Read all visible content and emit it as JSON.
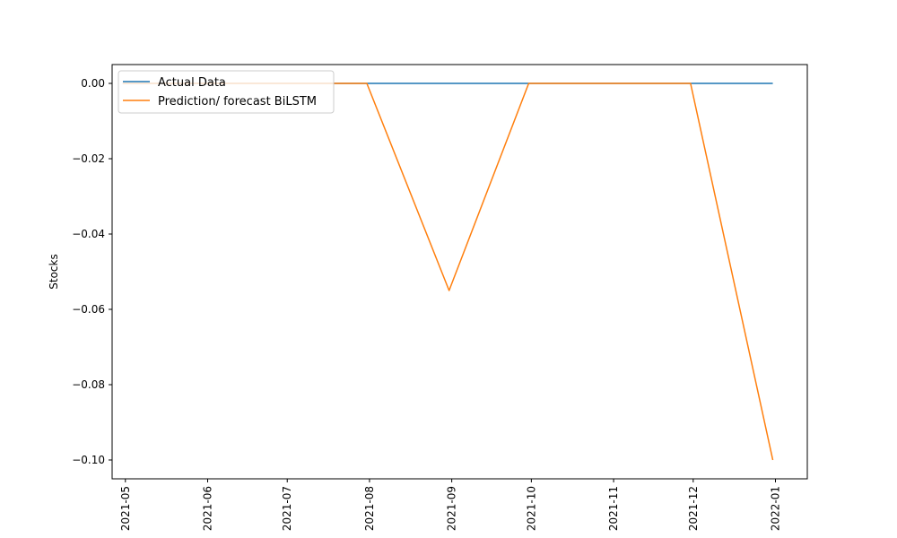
{
  "chart_data": {
    "type": "line",
    "title": "",
    "xlabel": "",
    "ylabel": "Stocks",
    "x_ticks": [
      "2021-05",
      "2021-06",
      "2021-07",
      "2021-08",
      "2021-09",
      "2021-10",
      "2021-11",
      "2021-12",
      "2022-01"
    ],
    "y_ticks": [
      "0.00",
      "−0.02",
      "−0.04",
      "−0.06",
      "−0.08",
      "−0.10"
    ],
    "y_tick_values": [
      0.0,
      -0.02,
      -0.04,
      -0.06,
      -0.08,
      -0.1
    ],
    "xlim": [
      "2021-04-26",
      "2022-01-13"
    ],
    "ylim": [
      -0.105,
      0.005
    ],
    "grid": false,
    "legend_position": "top-left",
    "x": [
      "2021-04-30",
      "2021-05-31",
      "2021-06-30",
      "2021-07-31",
      "2021-08-31",
      "2021-09-30",
      "2021-10-31",
      "2021-11-30",
      "2021-12-31"
    ],
    "series": [
      {
        "name": "Actual Data",
        "color": "#1f77b4",
        "values": [
          0,
          0,
          0,
          0,
          0,
          0,
          0,
          0,
          0
        ]
      },
      {
        "name": "Prediction/ forecast BiLSTM",
        "color": "#ff7f0e",
        "values": [
          0,
          0,
          0,
          0,
          -0.055,
          0,
          0,
          0,
          -0.1
        ]
      }
    ]
  }
}
